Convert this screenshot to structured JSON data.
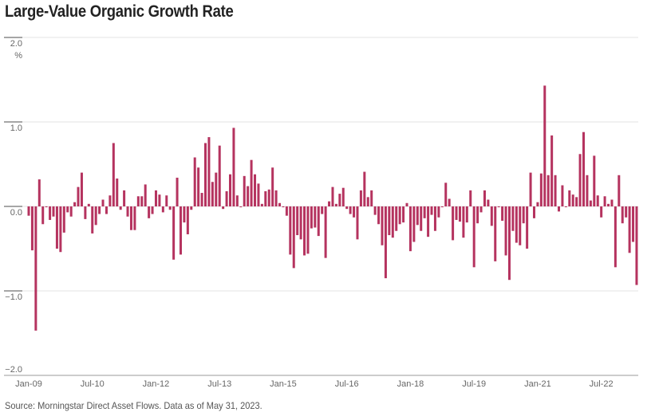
{
  "title": "Large-Value Organic Growth Rate",
  "source": "Source: Morningstar Direct Asset Flows. Data as of May 31, 2023.",
  "chart_data": {
    "type": "bar",
    "title": "Large-Value Organic Growth Rate",
    "xlabel": "",
    "ylabel": "%",
    "ylim": [
      -2.0,
      2.0
    ],
    "grid": true,
    "color": "#b5335f",
    "yticks": [
      {
        "value": 2.0,
        "label": "2.0"
      },
      {
        "value": 1.0,
        "label": "1.0"
      },
      {
        "value": 0.0,
        "label": "0.0"
      },
      {
        "value": -1.0,
        "label": "−1.0"
      },
      {
        "value": -2.0,
        "label": "−2.0"
      }
    ],
    "y_unit_label": "%",
    "xticks": [
      {
        "index": 0,
        "label": "Jan-09"
      },
      {
        "index": 18,
        "label": "Jul-10"
      },
      {
        "index": 36,
        "label": "Jan-12"
      },
      {
        "index": 54,
        "label": "Jul-13"
      },
      {
        "index": 72,
        "label": "Jan-15"
      },
      {
        "index": 90,
        "label": "Jul-16"
      },
      {
        "index": 108,
        "label": "Jan-18"
      },
      {
        "index": 126,
        "label": "Jul-19"
      },
      {
        "index": 144,
        "label": "Jan-21"
      },
      {
        "index": 162,
        "label": "Jul-22"
      }
    ],
    "start": "Jan-09",
    "end": "May-23",
    "frequency": "monthly",
    "values": [
      -0.11,
      -0.52,
      -1.47,
      0.32,
      -0.21,
      -0.01,
      -0.16,
      -0.12,
      -0.5,
      -0.54,
      -0.31,
      -0.07,
      -0.12,
      0.05,
      0.23,
      0.4,
      -0.15,
      0.03,
      -0.32,
      -0.22,
      -0.09,
      0.08,
      -0.09,
      0.13,
      0.75,
      0.33,
      -0.04,
      0.19,
      -0.12,
      -0.28,
      -0.28,
      0.12,
      0.12,
      0.26,
      -0.14,
      -0.09,
      0.19,
      0.14,
      -0.07,
      0.13,
      -0.04,
      -0.63,
      0.34,
      -0.57,
      -0.19,
      -0.33,
      -0.04,
      0.58,
      0.46,
      0.16,
      0.75,
      0.82,
      0.29,
      0.4,
      0.72,
      -0.03,
      0.18,
      0.38,
      0.93,
      0.13,
      -0.01,
      0.36,
      0.24,
      0.55,
      0.38,
      0.27,
      0.03,
      0.18,
      0.2,
      0.46,
      0.19,
      0.04,
      -0.01,
      -0.11,
      -0.57,
      -0.73,
      -0.34,
      -0.39,
      -0.58,
      -0.56,
      -0.26,
      -0.25,
      -0.35,
      -0.09,
      -0.61,
      0.06,
      0.23,
      0.03,
      0.15,
      0.22,
      -0.03,
      -0.09,
      -0.13,
      -0.39,
      0.19,
      0.41,
      0.11,
      0.19,
      -0.1,
      -0.21,
      -0.46,
      -0.85,
      -0.34,
      -0.37,
      -0.29,
      -0.21,
      -0.19,
      0.04,
      -0.53,
      -0.42,
      -0.22,
      -0.29,
      -0.14,
      -0.36,
      -0.1,
      -0.29,
      -0.13,
      -0.01,
      0.28,
      0.09,
      -0.4,
      -0.16,
      -0.18,
      -0.37,
      -0.19,
      0.19,
      -0.72,
      -0.2,
      -0.07,
      0.19,
      0.08,
      -0.23,
      -0.65,
      -0.01,
      -0.17,
      -0.58,
      -0.87,
      -0.29,
      -0.43,
      -0.46,
      -0.2,
      -0.5,
      0.4,
      -0.14,
      0.05,
      0.39,
      1.43,
      0.37,
      0.84,
      0.37,
      -0.06,
      0.25,
      0.0,
      0.19,
      0.14,
      0.11,
      0.62,
      0.88,
      0.37,
      0.07,
      0.6,
      0.13,
      -0.13,
      0.12,
      0.03,
      0.08,
      -0.72,
      0.37,
      -0.2,
      -0.13,
      -0.55,
      -0.42,
      -0.93
    ]
  }
}
